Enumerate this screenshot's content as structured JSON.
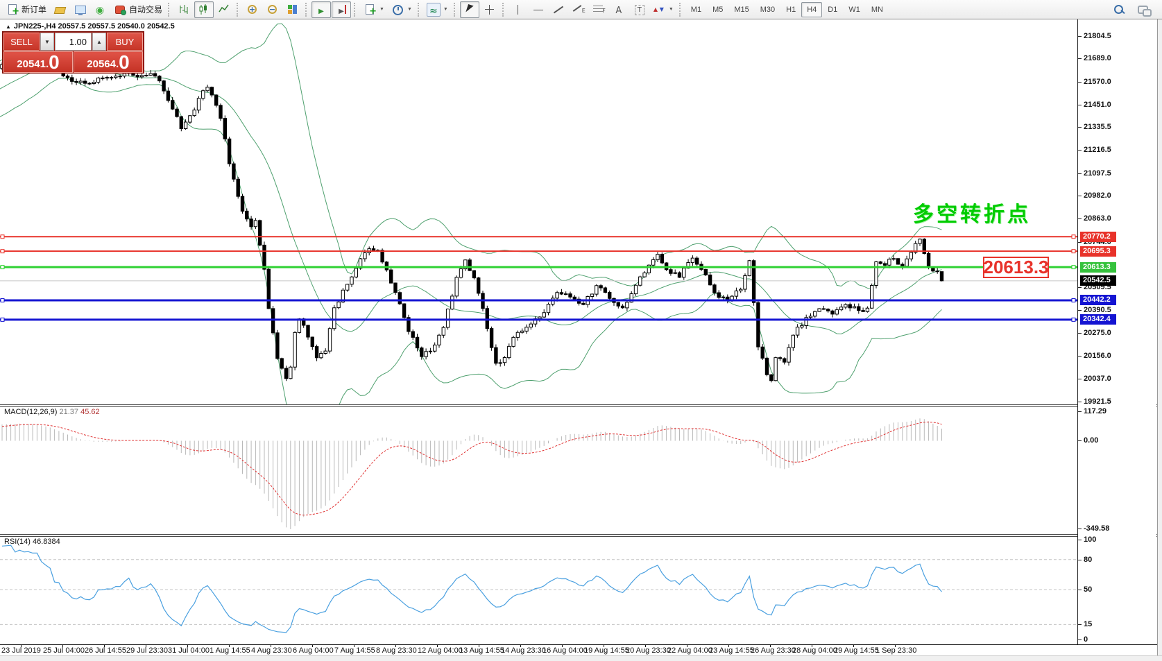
{
  "toolbar": {
    "new_order_label": "新订单",
    "auto_trading_label": "自动交易",
    "timeframes": [
      "M1",
      "M5",
      "M15",
      "M30",
      "H1",
      "H4",
      "D1",
      "W1",
      "MN"
    ],
    "active_timeframe": "H4"
  },
  "trade_panel": {
    "sell_label": "SELL",
    "buy_label": "BUY",
    "volume": "1.00",
    "sell_price": "20541",
    "sell_price_big": "0",
    "buy_price": "20564",
    "buy_price_big": "0"
  },
  "symbol_info": {
    "collapse_marker": "▲",
    "text": "JPN225-,H4  20557.5 20557.5 20540.0 20542.5"
  },
  "annotations": {
    "turning_point_label": "多空转折点",
    "turning_point_color": "#00cc00",
    "price_box_label": "20613.3",
    "price_box_color": "#e8322a"
  },
  "price_axis": {
    "ticks": [
      {
        "label": "21804.5",
        "price": 21804.5
      },
      {
        "label": "21689.0",
        "price": 21689.0
      },
      {
        "label": "21570.0",
        "price": 21570.0
      },
      {
        "label": "21451.0",
        "price": 21451.0
      },
      {
        "label": "21335.5",
        "price": 21335.5
      },
      {
        "label": "21216.5",
        "price": 21216.5
      },
      {
        "label": "21097.5",
        "price": 21097.5
      },
      {
        "label": "20982.0",
        "price": 20982.0
      },
      {
        "label": "20863.0",
        "price": 20863.0
      },
      {
        "label": "20744.0",
        "price": 20744.0
      },
      {
        "label": "20509.5",
        "price": 20509.5
      },
      {
        "label": "20390.5",
        "price": 20390.5
      },
      {
        "label": "20275.0",
        "price": 20275.0
      },
      {
        "label": "20156.0",
        "price": 20156.0
      },
      {
        "label": "20037.0",
        "price": 20037.0
      },
      {
        "label": "19921.5",
        "price": 19921.5
      }
    ],
    "badges": [
      {
        "label": "20770.2",
        "price": 20770.2,
        "color": "#e8322a"
      },
      {
        "label": "20695.3",
        "price": 20695.3,
        "color": "#e8322a"
      },
      {
        "label": "20613.3",
        "price": 20613.3,
        "color": "#35c23c"
      },
      {
        "label": "20542.5",
        "price": 20542.5,
        "color": "#000000"
      },
      {
        "label": "20442.2",
        "price": 20442.2,
        "color": "#1414d2"
      },
      {
        "label": "20342.4",
        "price": 20342.4,
        "color": "#1414d2"
      }
    ]
  },
  "macd_panel": {
    "label": "MACD(12,26,9)",
    "value_main": "21.37",
    "value_signal": "45.62",
    "axis_max": "117.29",
    "axis_zero": "0.00",
    "axis_min": "-349.58"
  },
  "rsi_panel": {
    "label": "RSI(14)",
    "value": "46.8384",
    "axis_labels": [
      {
        "label": "100",
        "v": 100
      },
      {
        "label": "80",
        "v": 80
      },
      {
        "label": "50",
        "v": 50
      },
      {
        "label": "15",
        "v": 15
      },
      {
        "label": "0",
        "v": 0
      }
    ],
    "level_lines": [
      80,
      50,
      15
    ]
  },
  "time_axis": {
    "labels": [
      "23 Jul 2019",
      "25 Jul 04:00",
      "26 Jul 14:55",
      "29 Jul 23:30",
      "31 Jul 04:00",
      "1 Aug 14:55",
      "4 Aug 23:30",
      "6 Aug 04:00",
      "7 Aug 14:55",
      "8 Aug 23:30",
      "12 Aug 04:00",
      "13 Aug 14:55",
      "14 Aug 23:30",
      "16 Aug 04:00",
      "19 Aug 14:55",
      "20 Aug 23:30",
      "22 Aug 04:00",
      "23 Aug 14:55",
      "26 Aug 23:30",
      "28 Aug 04:00",
      "29 Aug 14:55",
      "1 Sep 23:30"
    ]
  },
  "chart_data": {
    "type": "candlestick",
    "symbol": "JPN225-",
    "timeframe": "H4",
    "last_ohlc": {
      "open": 20557.5,
      "high": 20557.5,
      "low": 20540.0,
      "close": 20542.5
    },
    "bid": 20541.0,
    "ask": 20564.0,
    "price_axis_range": [
      19921.5,
      21804.5
    ],
    "hlines": [
      {
        "price": 20770.2,
        "color": "#e8322a",
        "width": 2
      },
      {
        "price": 20695.3,
        "color": "#e8322a",
        "width": 2
      },
      {
        "price": 20613.3,
        "color": "#2fd132",
        "width": 3
      },
      {
        "price": 20542.5,
        "color": "#c8c8c8",
        "width": 1
      },
      {
        "price": 20442.2,
        "color": "#1414d2",
        "width": 3
      },
      {
        "price": 20342.4,
        "color": "#1414d2",
        "width": 3
      }
    ],
    "indicators": {
      "bollinger": {
        "period": 20,
        "deviation": 2,
        "color": "#4ea06e"
      },
      "macd": {
        "fast": 12,
        "slow": 26,
        "signal": 9,
        "current_main": 21.37,
        "current_signal": 45.62,
        "range": [
          -349.58,
          117.29
        ],
        "histogram_color": "#b9b9b9",
        "signal_color": "#e03232"
      },
      "rsi": {
        "period": 14,
        "current": 46.8384,
        "range": [
          0,
          100
        ],
        "levels": [
          15,
          50,
          80
        ],
        "color": "#4aa0e0"
      }
    },
    "candle_count": 216,
    "warmup_anchors": [
      [
        -25,
        21350
      ],
      [
        -15,
        21470
      ],
      [
        -8,
        21560
      ]
    ],
    "price_path_anchors": [
      [
        0,
        21660
      ],
      [
        6,
        21700
      ],
      [
        10,
        21670
      ],
      [
        13,
        21630
      ],
      [
        14,
        21600
      ],
      [
        18,
        21570
      ],
      [
        20,
        21560
      ],
      [
        24,
        21590
      ],
      [
        28,
        21615
      ],
      [
        32,
        21600
      ],
      [
        34,
        21615
      ],
      [
        36,
        21570
      ],
      [
        38,
        21470
      ],
      [
        41,
        21330
      ],
      [
        44,
        21420
      ],
      [
        46,
        21520
      ],
      [
        47,
        21540
      ],
      [
        50,
        21380
      ],
      [
        52,
        21150
      ],
      [
        55,
        20900
      ],
      [
        57,
        20820
      ],
      [
        58,
        20850
      ],
      [
        60,
        20600
      ],
      [
        61,
        20400
      ],
      [
        63,
        20140
      ],
      [
        65,
        20040
      ],
      [
        66,
        20100
      ],
      [
        67,
        20280
      ],
      [
        68,
        20350
      ],
      [
        70,
        20250
      ],
      [
        72,
        20150
      ],
      [
        74,
        20180
      ],
      [
        76,
        20400
      ],
      [
        80,
        20560
      ],
      [
        83,
        20690
      ],
      [
        86,
        20700
      ],
      [
        88,
        20600
      ],
      [
        90,
        20480
      ],
      [
        93,
        20280
      ],
      [
        96,
        20150
      ],
      [
        98,
        20180
      ],
      [
        101,
        20300
      ],
      [
        104,
        20560
      ],
      [
        106,
        20650
      ],
      [
        108,
        20560
      ],
      [
        110,
        20400
      ],
      [
        113,
        20120
      ],
      [
        115,
        20150
      ],
      [
        118,
        20280
      ],
      [
        121,
        20320
      ],
      [
        124,
        20380
      ],
      [
        127,
        20480
      ],
      [
        130,
        20460
      ],
      [
        133,
        20420
      ],
      [
        136,
        20520
      ],
      [
        139,
        20450
      ],
      [
        142,
        20400
      ],
      [
        145,
        20520
      ],
      [
        148,
        20620
      ],
      [
        150,
        20680
      ],
      [
        152,
        20600
      ],
      [
        155,
        20560
      ],
      [
        158,
        20660
      ],
      [
        160,
        20600
      ],
      [
        163,
        20480
      ],
      [
        166,
        20440
      ],
      [
        169,
        20500
      ],
      [
        171,
        20650
      ],
      [
        173,
        20200
      ],
      [
        175,
        20060
      ],
      [
        176,
        20030
      ],
      [
        177,
        20150
      ],
      [
        179,
        20120
      ],
      [
        181,
        20260
      ],
      [
        184,
        20350
      ],
      [
        187,
        20400
      ],
      [
        190,
        20370
      ],
      [
        193,
        20420
      ],
      [
        196,
        20390
      ],
      [
        198,
        20400
      ],
      [
        200,
        20640
      ],
      [
        202,
        20620
      ],
      [
        204,
        20660
      ],
      [
        206,
        20620
      ],
      [
        208,
        20690
      ],
      [
        210,
        20755
      ],
      [
        212,
        20610
      ],
      [
        214,
        20590
      ],
      [
        215,
        20542.5
      ]
    ]
  }
}
